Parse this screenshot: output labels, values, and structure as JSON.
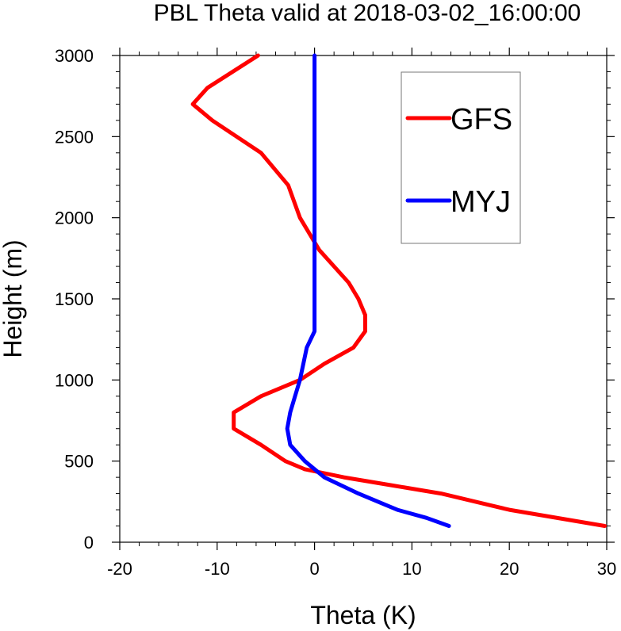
{
  "chart_data": {
    "type": "line",
    "title": "PBL Theta valid at 2018-03-02_16:00:00",
    "xlabel": "Theta (K)",
    "ylabel": "Height (m)",
    "xlim": [
      -20,
      30
    ],
    "ylim": [
      0,
      3000
    ],
    "xticks": [
      "-20",
      "-10",
      "0",
      "10",
      "20",
      "30"
    ],
    "yticks": [
      "0",
      "500",
      "1000",
      "1500",
      "2000",
      "2500",
      "3000"
    ],
    "grid": false,
    "legend_position": "top-right",
    "series": [
      {
        "name": "GFS",
        "color": "#ff0000",
        "x": [
          29.8,
          20,
          13,
          8,
          3,
          -1,
          -3,
          -5.5,
          -8.3,
          -8.3,
          -5.5,
          -1.5,
          1,
          4,
          5.2,
          5.2,
          4.5,
          3.5,
          0.5,
          -1.5,
          -2.7,
          -5.5,
          -10.5,
          -12.5,
          -11,
          -5.8
        ],
        "y": [
          100,
          200,
          300,
          350,
          400,
          450,
          500,
          600,
          700,
          800,
          900,
          1000,
          1100,
          1200,
          1300,
          1400,
          1500,
          1600,
          1800,
          2000,
          2200,
          2400,
          2600,
          2700,
          2800,
          3000
        ]
      },
      {
        "name": "MYJ",
        "color": "#0000ff",
        "x": [
          13.8,
          11.5,
          8.5,
          4.5,
          1,
          -1,
          -2.5,
          -2.8,
          -2.5,
          -2,
          -1.5,
          -0.8,
          0,
          0,
          0,
          0,
          0,
          0,
          0
        ],
        "y": [
          100,
          150,
          200,
          300,
          400,
          500,
          600,
          700,
          800,
          900,
          1000,
          1200,
          1300,
          1500,
          1800,
          2000,
          2400,
          2800,
          3000
        ]
      }
    ]
  }
}
